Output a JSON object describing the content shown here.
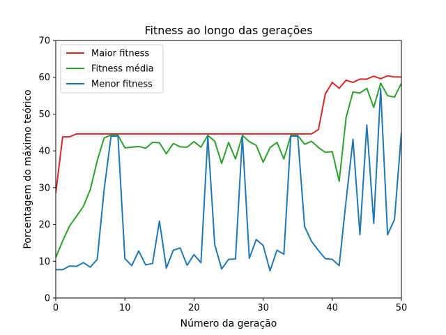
{
  "chart_data": {
    "type": "line",
    "title": "Fitness ao longo das gerações",
    "xlabel": "Número da geração",
    "ylabel": "Porcentagem do máximo teórico",
    "xlim": [
      0,
      50
    ],
    "ylim": [
      0,
      70
    ],
    "xticks": [
      0,
      10,
      20,
      30,
      40,
      50
    ],
    "yticks": [
      0,
      10,
      20,
      30,
      40,
      50,
      60,
      70
    ],
    "grid": false,
    "legend_position": "top-left",
    "x": [
      0,
      1,
      2,
      3,
      4,
      5,
      6,
      7,
      8,
      9,
      10,
      11,
      12,
      13,
      14,
      15,
      16,
      17,
      18,
      19,
      20,
      21,
      22,
      23,
      24,
      25,
      26,
      27,
      28,
      29,
      30,
      31,
      32,
      33,
      34,
      35,
      36,
      37,
      38,
      39,
      40,
      41,
      42,
      43,
      44,
      45,
      46,
      47,
      48,
      49,
      50
    ],
    "series": [
      {
        "name": "Maior fitness",
        "color": "#d62728",
        "values": [
          28.5,
          43.8,
          43.8,
          44.6,
          44.6,
          44.6,
          44.6,
          44.6,
          44.6,
          44.6,
          44.6,
          44.6,
          44.6,
          44.6,
          44.6,
          44.6,
          44.6,
          44.6,
          44.6,
          44.6,
          44.6,
          44.6,
          44.6,
          44.6,
          44.6,
          44.6,
          44.6,
          44.6,
          44.6,
          44.6,
          44.6,
          44.6,
          44.6,
          44.6,
          44.6,
          44.6,
          44.6,
          44.6,
          45.8,
          55.5,
          58.6,
          57.0,
          59.2,
          58.6,
          59.5,
          59.5,
          60.3,
          59.6,
          60.4,
          60.1,
          60.1
        ]
      },
      {
        "name": "Fitness média",
        "color": "#2ca02c",
        "values": [
          11.0,
          15.5,
          19.6,
          22.2,
          24.9,
          29.5,
          37.3,
          43.5,
          44.3,
          44.3,
          40.8,
          41.0,
          41.2,
          40.7,
          42.3,
          42.2,
          39.2,
          42.0,
          41.1,
          41.0,
          42.5,
          41.0,
          44.2,
          42.6,
          36.6,
          42.3,
          37.8,
          44.2,
          42.5,
          41.5,
          36.9,
          40.9,
          42.3,
          37.8,
          44.2,
          44.2,
          41.8,
          42.6,
          40.9,
          39.6,
          39.8,
          31.7,
          49.1,
          56.0,
          55.7,
          57.0,
          51.8,
          58.4,
          55.0,
          54.6,
          58.4
        ]
      },
      {
        "name": "Menor fitness",
        "color": "#1f77b4",
        "values": [
          7.7,
          7.7,
          8.7,
          8.6,
          9.6,
          8.4,
          10.5,
          29.5,
          44.0,
          44.0,
          10.7,
          8.8,
          12.8,
          9.0,
          9.4,
          20.9,
          8.1,
          13.0,
          13.6,
          8.9,
          11.8,
          9.6,
          44.0,
          14.5,
          7.9,
          10.5,
          10.6,
          44.0,
          10.8,
          15.9,
          14.3,
          7.4,
          13.0,
          11.9,
          44.0,
          44.0,
          19.4,
          15.4,
          12.9,
          10.7,
          10.5,
          8.8,
          26.5,
          43.1,
          17.2,
          47.0,
          20.3,
          56.9,
          17.2,
          21.3,
          45.0
        ]
      }
    ]
  }
}
